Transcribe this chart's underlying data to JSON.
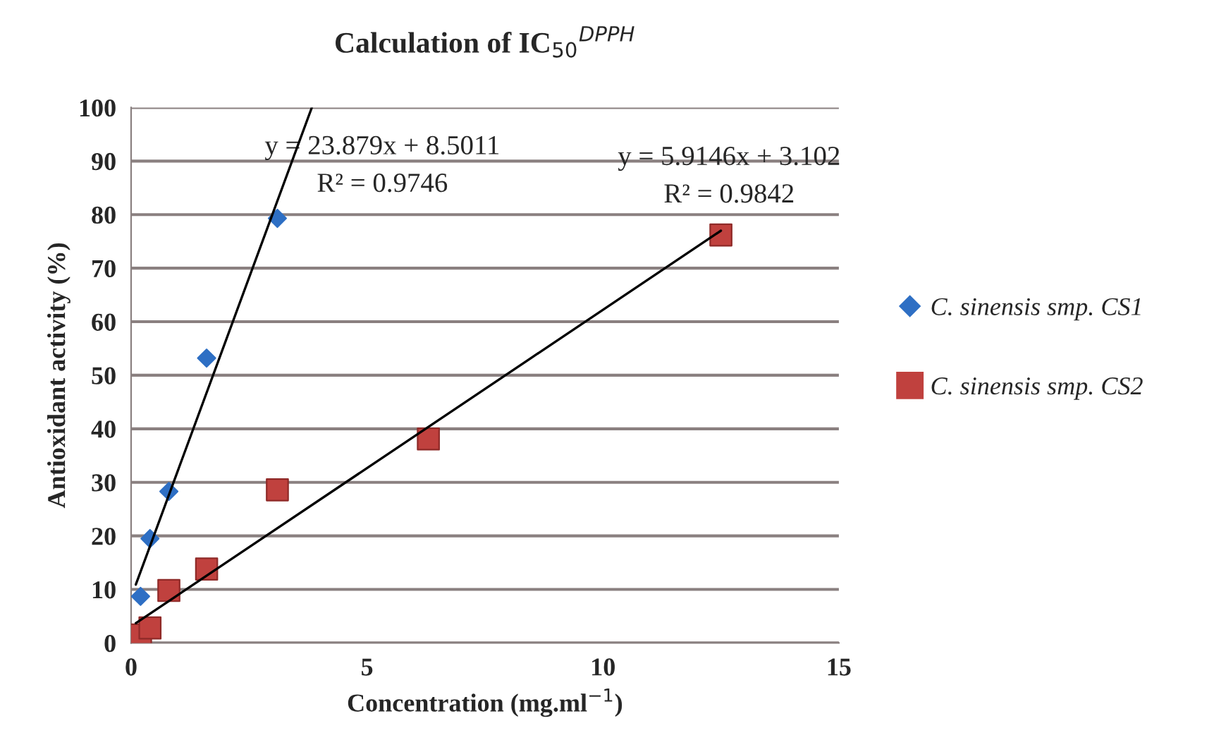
{
  "chart_data": {
    "type": "scatter",
    "title": "Calculation of IC$_{50}$$^{DPPH}$",
    "xlabel": "Concentration (mg.ml$^{−1}$)",
    "ylabel": "Antioxidant activity (%)",
    "series": [
      {
        "name": "C. sinensis smp. CS1",
        "color": "#2e6fc4",
        "marker": "diamond",
        "x": [
          0.2,
          0.4,
          0.8,
          1.6,
          3.1
        ],
        "values": [
          8.7,
          19.5,
          28.3,
          53.2,
          79.3
        ]
      },
      {
        "name": "C. sinensis smp. CS2",
        "color": "#c0413e",
        "marker": "square",
        "x": [
          0.2,
          0.4,
          0.8,
          1.6,
          3.1,
          6.3,
          12.5
        ],
        "values": [
          1.5,
          2.8,
          9.8,
          13.8,
          28.6,
          38.1,
          76.2
        ]
      },
      {
        "type": "line",
        "color": "#000000",
        "x": [
          0.1,
          3.83
        ],
        "values": [
          10.9,
          100
        ]
      },
      {
        "type": "line",
        "color": "#000000",
        "x": [
          0.1,
          12.5
        ],
        "values": [
          3.7,
          77.0
        ]
      }
    ],
    "annotations": [
      "y = 23.879x + 8.5011",
      "R² = 0.9746",
      "y = 5.9146x + 3.102",
      "R² = 0.9842"
    ],
    "xlim": [
      0,
      15
    ],
    "xticks": [
      0,
      5,
      10,
      15
    ],
    "ylim": [
      0,
      100
    ],
    "yticks": [
      0,
      10,
      20,
      30,
      40,
      50,
      60,
      70,
      80,
      90,
      100
    ],
    "grid": "y",
    "legend": "right"
  }
}
